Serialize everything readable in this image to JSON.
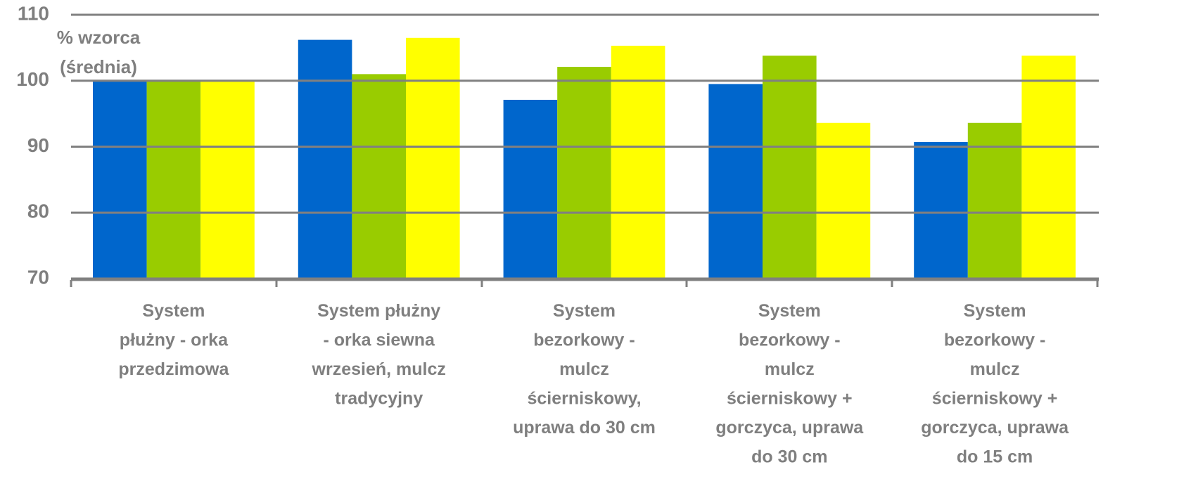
{
  "chart_data": {
    "type": "bar",
    "ylabel": [
      "% wzorca",
      "(średnia)"
    ],
    "categories": [
      [
        "System",
        "płużny -  orka",
        "przedzimowa"
      ],
      [
        "System płużny",
        "- orka siewna",
        "wrzesień, mulcz",
        "tradycyjny"
      ],
      [
        "System",
        "bezorkowy -",
        "mulcz",
        "ścierniskowy,",
        "uprawa do 30 cm"
      ],
      [
        "System",
        "bezorkowy -",
        "mulcz",
        "ścierniskowy +",
        "gorczyca, uprawa",
        "do 30 cm"
      ],
      [
        "System",
        "bezorkowy -",
        "mulcz",
        "ścierniskowy +",
        "gorczyca, uprawa",
        "do 15 cm"
      ]
    ],
    "series": [
      {
        "color": "#0066cc",
        "values": [
          100,
          106.2,
          97.1,
          99.5,
          90.7
        ]
      },
      {
        "color": "#99cc00",
        "values": [
          100,
          101,
          102.1,
          103.8,
          93.6
        ]
      },
      {
        "color": "#ffff00",
        "values": [
          100,
          106.5,
          105.3,
          93.6,
          103.8
        ]
      }
    ],
    "ylim": [
      70,
      110
    ],
    "yticks": [
      70,
      80,
      90,
      100,
      110
    ],
    "grid": true
  }
}
